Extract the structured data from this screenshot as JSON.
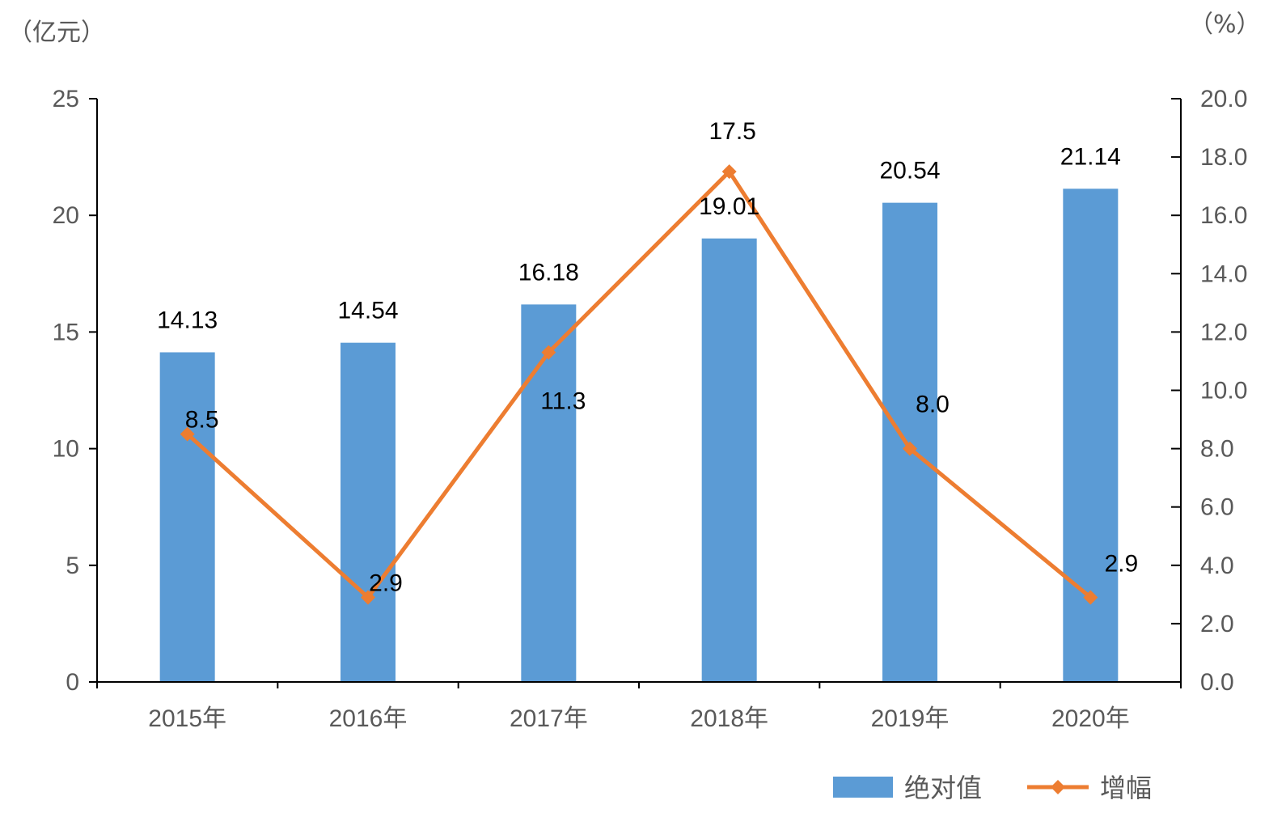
{
  "chart_data": {
    "type": "bar",
    "categories": [
      "2015年",
      "2016年",
      "2017年",
      "2018年",
      "2019年",
      "2020年"
    ],
    "left_axis_unit": "（亿元）",
    "right_axis_unit": "（%）",
    "ylim_left": [
      0,
      25
    ],
    "yticks_left": [
      "0",
      "5",
      "10",
      "15",
      "20",
      "25"
    ],
    "ylim_right": [
      0,
      20
    ],
    "yticks_right": [
      "0.0",
      "2.0",
      "4.0",
      "6.0",
      "8.0",
      "10.0",
      "12.0",
      "14.0",
      "16.0",
      "18.0",
      "20.0"
    ],
    "grid": false,
    "legend_position": "bottom-right",
    "series": [
      {
        "name": "绝对值",
        "type": "bar",
        "axis": "left",
        "values": [
          14.13,
          14.54,
          16.18,
          19.01,
          20.54,
          21.14
        ],
        "labels": [
          "14.13",
          "14.54",
          "16.18",
          "19.01",
          "20.54",
          "21.14"
        ],
        "color": "#5B9BD5"
      },
      {
        "name": "增幅",
        "type": "line",
        "axis": "right",
        "marker": "diamond",
        "values": [
          8.5,
          2.9,
          11.3,
          17.5,
          8.0,
          2.9
        ],
        "labels": [
          "8.5",
          "2.9",
          "11.3",
          "17.5",
          "8.0",
          "2.9"
        ],
        "color": "#ED7D31"
      }
    ]
  }
}
